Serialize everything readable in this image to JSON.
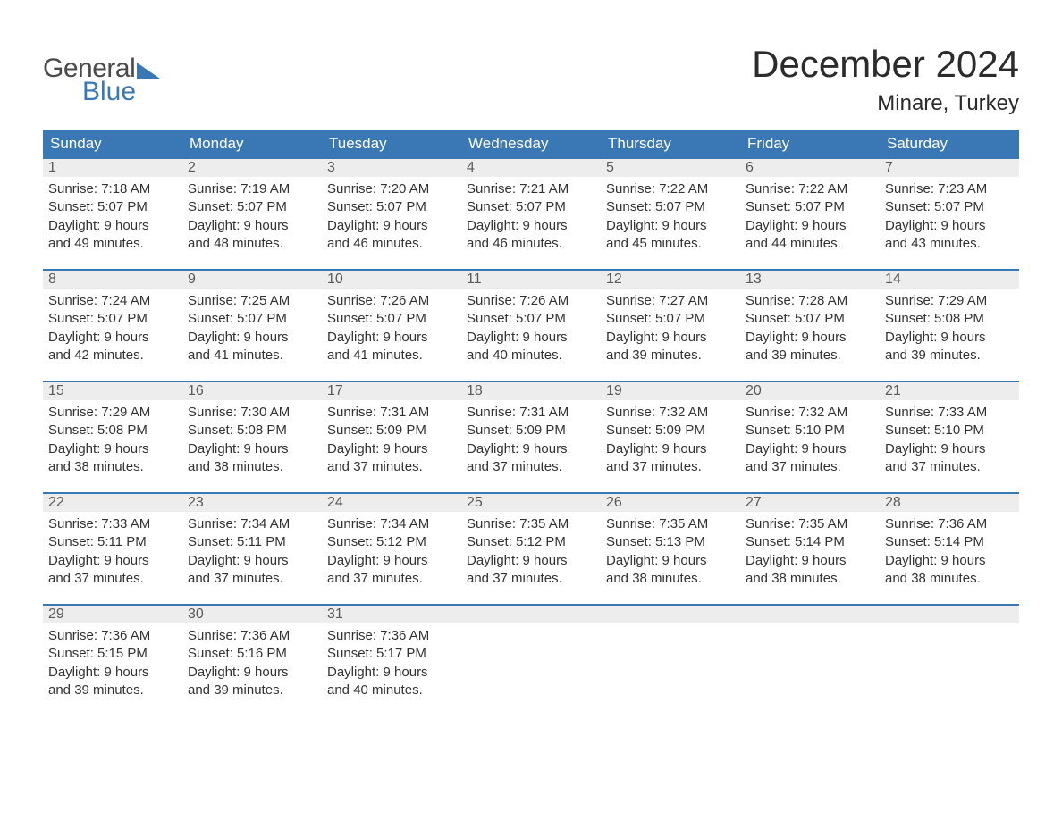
{
  "logo": {
    "word1": "General",
    "word2": "Blue"
  },
  "title": "December 2024",
  "location": "Minare, Turkey",
  "colors": {
    "brand_blue": "#3a78b5",
    "header_bg": "#3a78b5",
    "header_text": "#ffffff",
    "daynum_bg": "#ededed",
    "daynum_text": "#5a5a5a",
    "body_text": "#333333",
    "page_bg": "#ffffff",
    "logo_gray": "#4a4a4a"
  },
  "typography": {
    "title_fontsize": 42,
    "location_fontsize": 24,
    "dayhead_fontsize": 17,
    "daynum_fontsize": 16,
    "body_fontsize": 15,
    "logo_fontsize": 30
  },
  "weekdays": [
    "Sunday",
    "Monday",
    "Tuesday",
    "Wednesday",
    "Thursday",
    "Friday",
    "Saturday"
  ],
  "days": [
    {
      "n": "1",
      "sunrise": "Sunrise: 7:18 AM",
      "sunset": "Sunset: 5:07 PM",
      "day1": "Daylight: 9 hours",
      "day2": "and 49 minutes."
    },
    {
      "n": "2",
      "sunrise": "Sunrise: 7:19 AM",
      "sunset": "Sunset: 5:07 PM",
      "day1": "Daylight: 9 hours",
      "day2": "and 48 minutes."
    },
    {
      "n": "3",
      "sunrise": "Sunrise: 7:20 AM",
      "sunset": "Sunset: 5:07 PM",
      "day1": "Daylight: 9 hours",
      "day2": "and 46 minutes."
    },
    {
      "n": "4",
      "sunrise": "Sunrise: 7:21 AM",
      "sunset": "Sunset: 5:07 PM",
      "day1": "Daylight: 9 hours",
      "day2": "and 46 minutes."
    },
    {
      "n": "5",
      "sunrise": "Sunrise: 7:22 AM",
      "sunset": "Sunset: 5:07 PM",
      "day1": "Daylight: 9 hours",
      "day2": "and 45 minutes."
    },
    {
      "n": "6",
      "sunrise": "Sunrise: 7:22 AM",
      "sunset": "Sunset: 5:07 PM",
      "day1": "Daylight: 9 hours",
      "day2": "and 44 minutes."
    },
    {
      "n": "7",
      "sunrise": "Sunrise: 7:23 AM",
      "sunset": "Sunset: 5:07 PM",
      "day1": "Daylight: 9 hours",
      "day2": "and 43 minutes."
    },
    {
      "n": "8",
      "sunrise": "Sunrise: 7:24 AM",
      "sunset": "Sunset: 5:07 PM",
      "day1": "Daylight: 9 hours",
      "day2": "and 42 minutes."
    },
    {
      "n": "9",
      "sunrise": "Sunrise: 7:25 AM",
      "sunset": "Sunset: 5:07 PM",
      "day1": "Daylight: 9 hours",
      "day2": "and 41 minutes."
    },
    {
      "n": "10",
      "sunrise": "Sunrise: 7:26 AM",
      "sunset": "Sunset: 5:07 PM",
      "day1": "Daylight: 9 hours",
      "day2": "and 41 minutes."
    },
    {
      "n": "11",
      "sunrise": "Sunrise: 7:26 AM",
      "sunset": "Sunset: 5:07 PM",
      "day1": "Daylight: 9 hours",
      "day2": "and 40 minutes."
    },
    {
      "n": "12",
      "sunrise": "Sunrise: 7:27 AM",
      "sunset": "Sunset: 5:07 PM",
      "day1": "Daylight: 9 hours",
      "day2": "and 39 minutes."
    },
    {
      "n": "13",
      "sunrise": "Sunrise: 7:28 AM",
      "sunset": "Sunset: 5:07 PM",
      "day1": "Daylight: 9 hours",
      "day2": "and 39 minutes."
    },
    {
      "n": "14",
      "sunrise": "Sunrise: 7:29 AM",
      "sunset": "Sunset: 5:08 PM",
      "day1": "Daylight: 9 hours",
      "day2": "and 39 minutes."
    },
    {
      "n": "15",
      "sunrise": "Sunrise: 7:29 AM",
      "sunset": "Sunset: 5:08 PM",
      "day1": "Daylight: 9 hours",
      "day2": "and 38 minutes."
    },
    {
      "n": "16",
      "sunrise": "Sunrise: 7:30 AM",
      "sunset": "Sunset: 5:08 PM",
      "day1": "Daylight: 9 hours",
      "day2": "and 38 minutes."
    },
    {
      "n": "17",
      "sunrise": "Sunrise: 7:31 AM",
      "sunset": "Sunset: 5:09 PM",
      "day1": "Daylight: 9 hours",
      "day2": "and 37 minutes."
    },
    {
      "n": "18",
      "sunrise": "Sunrise: 7:31 AM",
      "sunset": "Sunset: 5:09 PM",
      "day1": "Daylight: 9 hours",
      "day2": "and 37 minutes."
    },
    {
      "n": "19",
      "sunrise": "Sunrise: 7:32 AM",
      "sunset": "Sunset: 5:09 PM",
      "day1": "Daylight: 9 hours",
      "day2": "and 37 minutes."
    },
    {
      "n": "20",
      "sunrise": "Sunrise: 7:32 AM",
      "sunset": "Sunset: 5:10 PM",
      "day1": "Daylight: 9 hours",
      "day2": "and 37 minutes."
    },
    {
      "n": "21",
      "sunrise": "Sunrise: 7:33 AM",
      "sunset": "Sunset: 5:10 PM",
      "day1": "Daylight: 9 hours",
      "day2": "and 37 minutes."
    },
    {
      "n": "22",
      "sunrise": "Sunrise: 7:33 AM",
      "sunset": "Sunset: 5:11 PM",
      "day1": "Daylight: 9 hours",
      "day2": "and 37 minutes."
    },
    {
      "n": "23",
      "sunrise": "Sunrise: 7:34 AM",
      "sunset": "Sunset: 5:11 PM",
      "day1": "Daylight: 9 hours",
      "day2": "and 37 minutes."
    },
    {
      "n": "24",
      "sunrise": "Sunrise: 7:34 AM",
      "sunset": "Sunset: 5:12 PM",
      "day1": "Daylight: 9 hours",
      "day2": "and 37 minutes."
    },
    {
      "n": "25",
      "sunrise": "Sunrise: 7:35 AM",
      "sunset": "Sunset: 5:12 PM",
      "day1": "Daylight: 9 hours",
      "day2": "and 37 minutes."
    },
    {
      "n": "26",
      "sunrise": "Sunrise: 7:35 AM",
      "sunset": "Sunset: 5:13 PM",
      "day1": "Daylight: 9 hours",
      "day2": "and 38 minutes."
    },
    {
      "n": "27",
      "sunrise": "Sunrise: 7:35 AM",
      "sunset": "Sunset: 5:14 PM",
      "day1": "Daylight: 9 hours",
      "day2": "and 38 minutes."
    },
    {
      "n": "28",
      "sunrise": "Sunrise: 7:36 AM",
      "sunset": "Sunset: 5:14 PM",
      "day1": "Daylight: 9 hours",
      "day2": "and 38 minutes."
    },
    {
      "n": "29",
      "sunrise": "Sunrise: 7:36 AM",
      "sunset": "Sunset: 5:15 PM",
      "day1": "Daylight: 9 hours",
      "day2": "and 39 minutes."
    },
    {
      "n": "30",
      "sunrise": "Sunrise: 7:36 AM",
      "sunset": "Sunset: 5:16 PM",
      "day1": "Daylight: 9 hours",
      "day2": "and 39 minutes."
    },
    {
      "n": "31",
      "sunrise": "Sunrise: 7:36 AM",
      "sunset": "Sunset: 5:17 PM",
      "day1": "Daylight: 9 hours",
      "day2": "and 40 minutes."
    }
  ],
  "layout": {
    "columns": 7,
    "rows": 5,
    "trailing_empty": 4
  }
}
